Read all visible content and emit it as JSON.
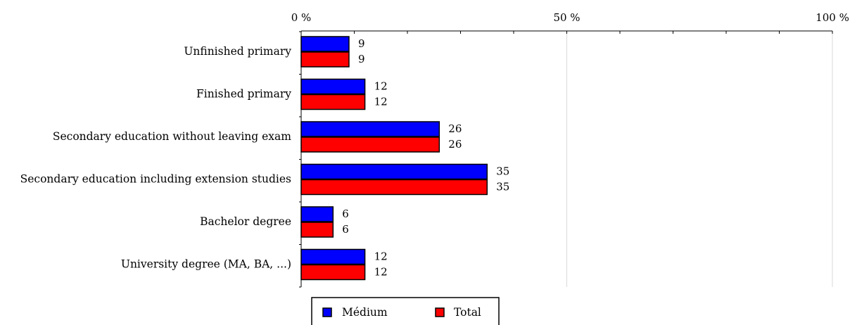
{
  "chart_data": {
    "type": "bar",
    "orientation": "horizontal",
    "categories": [
      "Unfinished primary",
      "Finished primary",
      "Secondary education without leaving exam",
      "Secondary education including extension studies",
      "Bachelor degree",
      "University degree (MA, BA, ...)"
    ],
    "series": [
      {
        "name": "Médium",
        "values": [
          9,
          12,
          26,
          35,
          6,
          12
        ],
        "color": "#0000ff"
      },
      {
        "name": "Total",
        "values": [
          9,
          12,
          26,
          35,
          6,
          12
        ],
        "color": "#ff0000"
      }
    ],
    "value_labels": {
      "Médium": [
        "9",
        "12",
        "26",
        "35",
        "6",
        "12"
      ],
      "Total": [
        "9",
        "12",
        "26",
        "35",
        "6",
        "12"
      ]
    },
    "xlim": [
      0,
      100
    ],
    "xticks": [
      {
        "value": 0,
        "label": "0 %"
      },
      {
        "value": 50,
        "label": "50 %"
      },
      {
        "value": 100,
        "label": "100 %"
      }
    ],
    "minor_tick_step": 10,
    "grid": true,
    "axis_position": "top",
    "legend_position": "bottom-center",
    "title": "",
    "xlabel": "",
    "ylabel": ""
  }
}
